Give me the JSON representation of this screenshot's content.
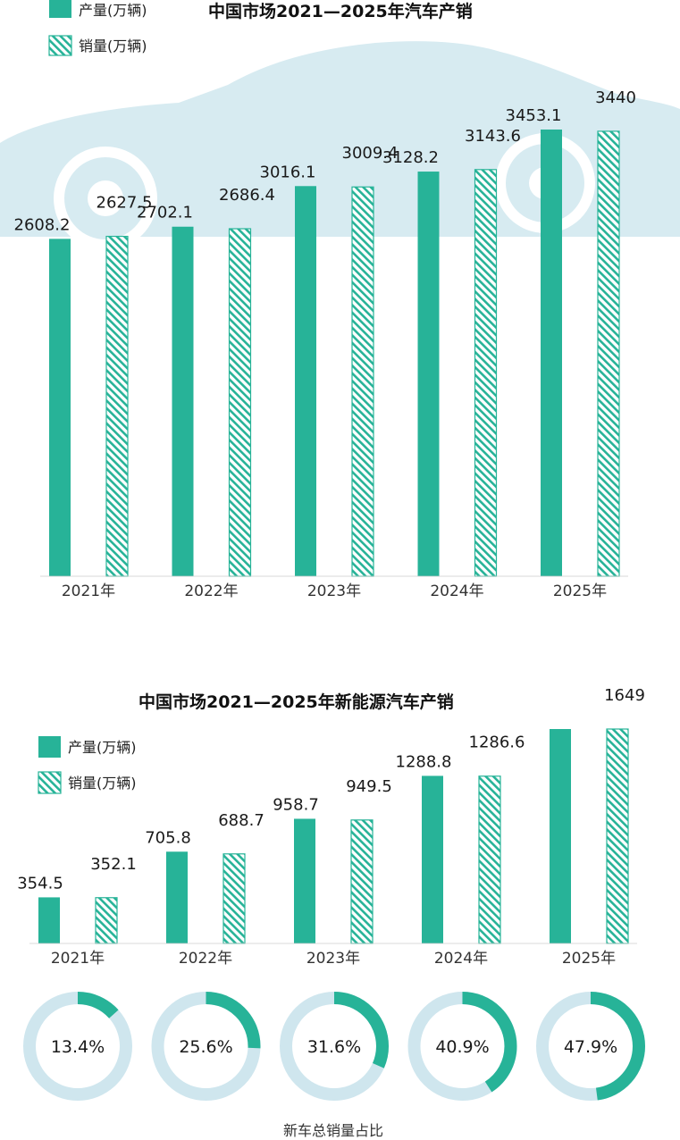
{
  "colors": {
    "production": "#27b398",
    "sales_stripe": "#27b398",
    "sales_fill": "#ffffff",
    "car_silhouette": "#cfe6ee",
    "donut_track": "#cfe6ee",
    "donut_value": "#27b398"
  },
  "chart_data": [
    {
      "type": "bar",
      "title": "中国市场2021—2025年汽车产销",
      "categories": [
        "2021年",
        "2022年",
        "2023年",
        "2024年",
        "2025年"
      ],
      "series": [
        {
          "name": "产量(万辆)",
          "values": [
            2608.2,
            2702.1,
            3016.1,
            3128.2,
            3453.1
          ],
          "labels": [
            "2608.2",
            "2702.1",
            "3016.1",
            "3128.2",
            "3453.1"
          ]
        },
        {
          "name": "销量(万辆)",
          "values": [
            2627.5,
            2686.4,
            3009.4,
            3143.6,
            3440
          ],
          "labels": [
            "2627.5",
            "2686.4",
            "3009.4",
            "3143.6",
            "3440"
          ]
        }
      ],
      "legend": [
        "产量(万辆)",
        "销量(万辆)"
      ],
      "legend_position": "top-left",
      "ylim": [
        0,
        3453.1
      ],
      "xlabel": "",
      "ylabel": ""
    },
    {
      "type": "bar",
      "title": "中国市场2021—2025年新能源汽车产销",
      "categories": [
        "2021年",
        "2022年",
        "2023年",
        "2024年",
        "2025年"
      ],
      "series": [
        {
          "name": "产量(万辆)",
          "values": [
            354.5,
            705.8,
            958.7,
            1288.8,
            1649
          ],
          "labels": [
            "354.5",
            "705.8",
            "958.7",
            "1288.8",
            ""
          ]
        },
        {
          "name": "销量(万辆)",
          "values": [
            352.1,
            688.7,
            949.5,
            1286.6,
            1649
          ],
          "labels": [
            "352.1",
            "688.7",
            "949.5",
            "1286.6",
            "1649"
          ]
        }
      ],
      "legend": [
        "产量(万辆)",
        "销量(万辆)"
      ],
      "legend_position": "top-left",
      "ylim": [
        0,
        1649
      ],
      "xlabel": "",
      "ylabel": ""
    },
    {
      "type": "pie",
      "title": "新车总销量占比",
      "categories": [
        "2021年",
        "2022年",
        "2023年",
        "2024年",
        "2025年"
      ],
      "values": [
        13.4,
        25.6,
        31.6,
        40.9,
        47.9
      ],
      "labels": [
        "13.4%",
        "25.6%",
        "31.6%",
        "40.9%",
        "47.9%"
      ]
    }
  ]
}
